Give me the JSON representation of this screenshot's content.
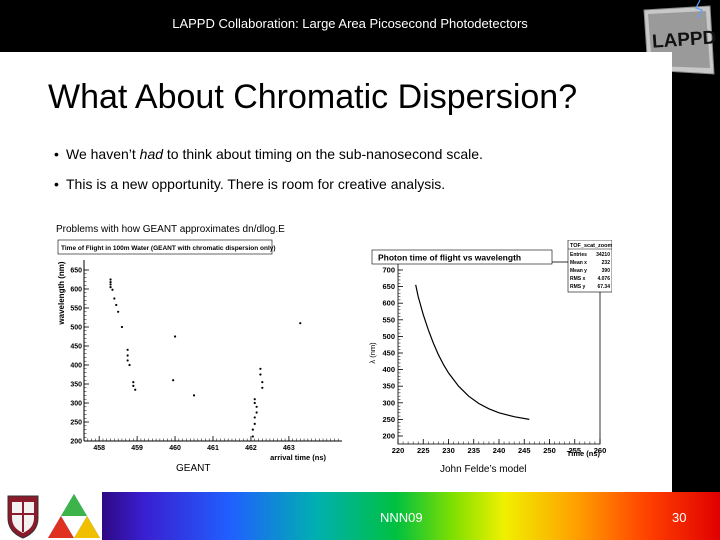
{
  "header": {
    "title": "LAPPD Collaboration: Large Area Picosecond Photodetectors",
    "logo_text": "LAPPD"
  },
  "slide": {
    "title": "What About Chromatic Dispersion?",
    "bullets": [
      {
        "before": "We haven’t ",
        "emph": "had",
        "after": " to think about timing on the sub-nanosecond scale."
      },
      {
        "before": "This is a new opportunity. There is room for creative analysis.",
        "emph": "",
        "after": ""
      }
    ],
    "plot_caption": "Problems with how GEANT approximates dn/dlog.E",
    "left_plot_label": "GEANT",
    "right_plot_label": "John Felde’s model"
  },
  "chart_data": [
    {
      "type": "scatter",
      "title": "Time of Flight in 100m Water (GEANT with chromatic dispersion only)",
      "xlabel": "arrival time (ns)",
      "ylabel": "wavelength (nm)",
      "xlim": [
        457.6,
        464.4
      ],
      "ylim": [
        200,
        650
      ],
      "xticks": [
        "458",
        "459",
        "460",
        "461",
        "462",
        "463"
      ],
      "yticks": [
        "200",
        "250",
        "300",
        "350",
        "400",
        "450",
        "500",
        "550",
        "600",
        "650"
      ],
      "points": [
        [
          458.3,
          625
        ],
        [
          458.3,
          618
        ],
        [
          458.3,
          612
        ],
        [
          458.3,
          605
        ],
        [
          458.35,
          598
        ],
        [
          458.4,
          575
        ],
        [
          458.45,
          558
        ],
        [
          458.5,
          540
        ],
        [
          458.6,
          500
        ],
        [
          458.75,
          440
        ],
        [
          458.75,
          425
        ],
        [
          458.75,
          412
        ],
        [
          458.8,
          400
        ],
        [
          458.9,
          355
        ],
        [
          458.9,
          345
        ],
        [
          458.95,
          335
        ],
        [
          460.0,
          475
        ],
        [
          459.95,
          360
        ],
        [
          460.5,
          320
        ],
        [
          462.25,
          390
        ],
        [
          462.25,
          375
        ],
        [
          462.3,
          355
        ],
        [
          462.3,
          340
        ],
        [
          462.1,
          310
        ],
        [
          462.1,
          300
        ],
        [
          462.15,
          290
        ],
        [
          462.15,
          275
        ],
        [
          462.1,
          262
        ],
        [
          462.1,
          245
        ],
        [
          462.05,
          230
        ],
        [
          462.05,
          212
        ],
        [
          463.3,
          510
        ]
      ]
    },
    {
      "type": "line",
      "title": "Photon time of flight vs wavelength",
      "xlabel": "Time (ns)",
      "ylabel": "λ (nm)",
      "xlim": [
        220,
        260
      ],
      "ylim": [
        200,
        700
      ],
      "xticks": [
        "220",
        "225",
        "230",
        "235",
        "240",
        "245",
        "250",
        "255",
        "260"
      ],
      "yticks": [
        "200",
        "250",
        "300",
        "350",
        "400",
        "450",
        "500",
        "550",
        "600",
        "650",
        "700"
      ],
      "stats": {
        "name": "TOF_scat_zoom",
        "rows": [
          {
            "label": "Entries",
            "value": "34210"
          },
          {
            "label": "Mean x",
            "value": "232"
          },
          {
            "label": "Mean y",
            "value": "390"
          },
          {
            "label": "RMS x",
            "value": "4.076"
          },
          {
            "label": "RMS y",
            "value": "67.34"
          }
        ]
      },
      "x": [
        223.5,
        224,
        225,
        226,
        227,
        228,
        229,
        230,
        232,
        234,
        236,
        238,
        240,
        243,
        246
      ],
      "y": [
        655,
        620,
        565,
        520,
        480,
        445,
        415,
        390,
        350,
        320,
        298,
        282,
        270,
        258,
        250
      ]
    }
  ],
  "footer": {
    "conference": "NNN09",
    "page": "30"
  }
}
